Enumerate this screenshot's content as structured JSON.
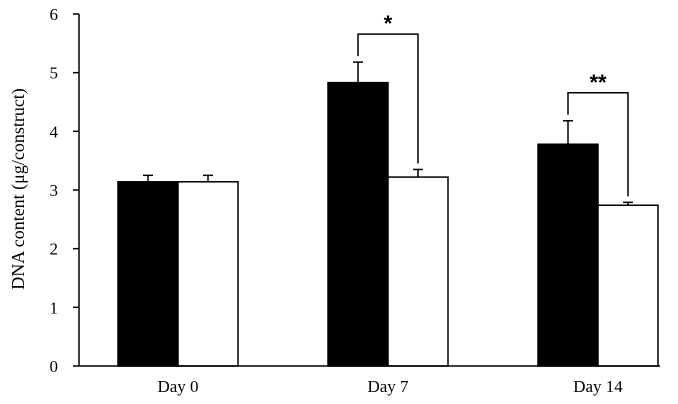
{
  "chart_data": {
    "type": "bar",
    "title": "",
    "xlabel": "",
    "ylabel": "DNA content (μg/construct)",
    "ylim": [
      0,
      6
    ],
    "yticks": [
      "0",
      "1",
      "2",
      "3",
      "4",
      "5",
      "6"
    ],
    "grid": false,
    "legend": "none",
    "categories": [
      "Day 0",
      "Day 7",
      "Day 14"
    ],
    "series": [
      {
        "color": "#000000",
        "values": [
          3.14,
          4.83,
          3.78
        ],
        "errors": [
          0.11,
          0.35,
          0.4
        ]
      },
      {
        "color": "#ffffff",
        "values": [
          3.14,
          3.22,
          2.74
        ],
        "errors": [
          0.11,
          0.13,
          0.05
        ]
      }
    ],
    "annotations": [
      {
        "category": "Day 7",
        "label": "*"
      },
      {
        "category": "Day 14",
        "label": "**"
      }
    ]
  }
}
